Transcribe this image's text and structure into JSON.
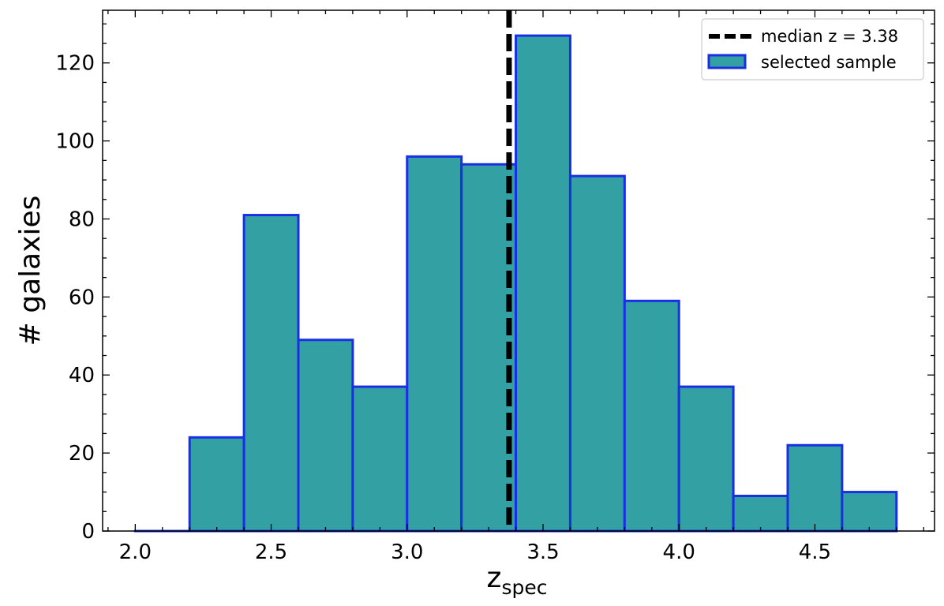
{
  "chart_data": {
    "type": "bar",
    "subtype": "histogram",
    "bin_edges": [
      2.0,
      2.2,
      2.4,
      2.6,
      2.8,
      3.0,
      3.2,
      3.4,
      3.6,
      3.8,
      4.0,
      4.2,
      4.4,
      4.6,
      4.8
    ],
    "values": [
      0,
      24,
      81,
      49,
      37,
      96,
      94,
      127,
      91,
      59,
      37,
      9,
      22,
      10
    ],
    "xlabel": "z",
    "xlabel_sub": "spec",
    "ylabel": "# galaxies",
    "xlim": [
      1.88,
      4.94
    ],
    "ylim": [
      0,
      133.5
    ],
    "x_ticks": [
      2.0,
      2.5,
      3.0,
      3.5,
      4.0,
      4.5
    ],
    "x_tick_labels": [
      "2.0",
      "2.5",
      "3.0",
      "3.5",
      "4.0",
      "4.5"
    ],
    "y_ticks": [
      0,
      20,
      40,
      60,
      80,
      100,
      120
    ],
    "y_tick_labels": [
      "0",
      "20",
      "40",
      "60",
      "80",
      "100",
      "120"
    ],
    "median_line": {
      "x": 3.375,
      "label": "median z =  3.38"
    },
    "series": [
      {
        "name": "selected sample",
        "fill_color": "#33a1a3",
        "edge_color": "#1a2ee6"
      }
    ],
    "median_color": "#000000",
    "legend_position": "top-right",
    "grid": false
  }
}
